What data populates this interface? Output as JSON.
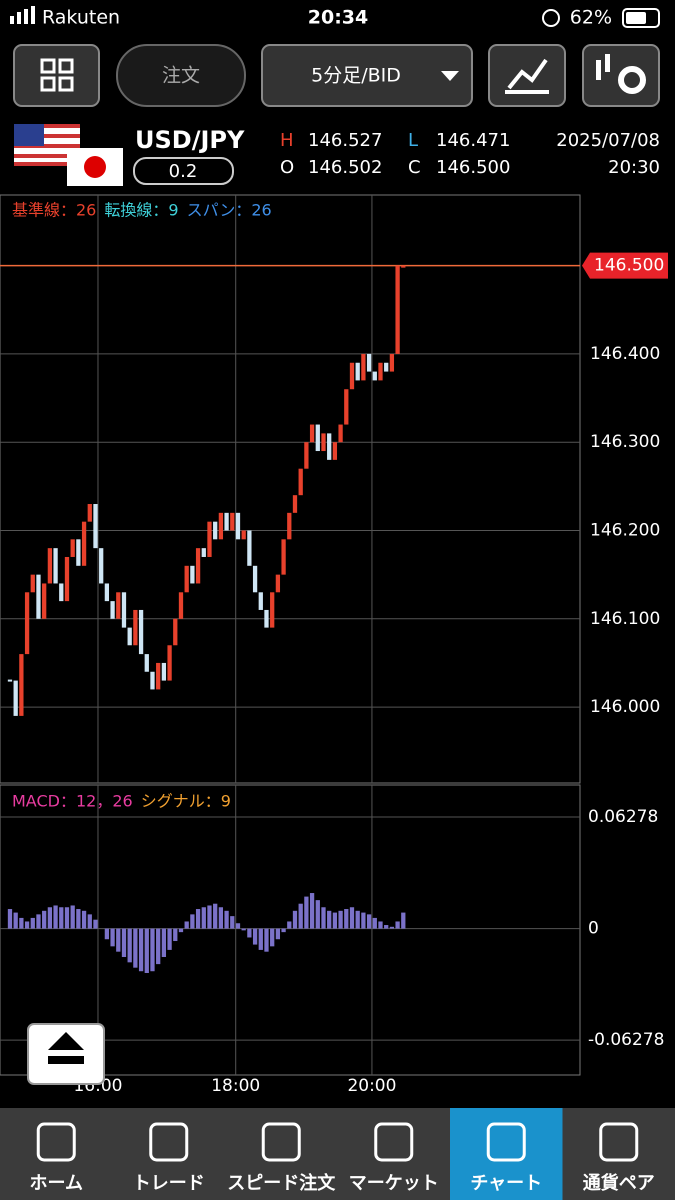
{
  "status": {
    "carrier": "Rakuten",
    "time": "20:34",
    "battery": "62%"
  },
  "toolbar": {
    "order": "注文",
    "timeframe": "5分足/BID"
  },
  "pair": {
    "name": "USD/JPY",
    "spread": "0.2",
    "date": "2025/07/08",
    "time": "20:30",
    "quotes": [
      {
        "label": "H",
        "value": "146.527"
      },
      {
        "label": "L",
        "value": "146.471"
      },
      {
        "label": "O",
        "value": "146.502"
      },
      {
        "label": "C",
        "value": "146.500"
      }
    ]
  },
  "chart_data": [
    {
      "type": "candlestick",
      "legend": [
        "基準線：26",
        "転換線：9",
        "スパン：26"
      ],
      "closes": [
        146.03,
        145.99,
        146.06,
        146.13,
        146.15,
        146.1,
        146.14,
        146.18,
        146.14,
        146.12,
        146.17,
        146.19,
        146.16,
        146.21,
        146.23,
        146.18,
        146.14,
        146.12,
        146.1,
        146.13,
        146.09,
        146.07,
        146.11,
        146.06,
        146.04,
        146.02,
        146.05,
        146.03,
        146.07,
        146.1,
        146.13,
        146.16,
        146.14,
        146.18,
        146.17,
        146.21,
        146.19,
        146.22,
        146.2,
        146.22,
        146.19,
        146.2,
        146.16,
        146.13,
        146.11,
        146.09,
        146.13,
        146.15,
        146.19,
        146.22,
        146.24,
        146.27,
        146.3,
        146.32,
        146.29,
        146.31,
        146.28,
        146.3,
        146.32,
        146.36,
        146.39,
        146.37,
        146.4,
        146.38,
        146.37,
        146.39,
        146.38,
        146.4,
        146.5,
        146.5
      ],
      "up_color": "#e8412c",
      "down_color": "#cfe6f5",
      "xlim": [
        -1.75,
        100
      ],
      "xticks": [
        {
          "value": 15.44,
          "label": "16:00"
        },
        {
          "value": 39.6,
          "label": "18:00"
        },
        {
          "value": 63.5,
          "label": "20:00"
        }
      ],
      "ylim": [
        145.914,
        146.58
      ],
      "yticks": [
        {
          "value": 146.0,
          "label": "146.000"
        },
        {
          "value": 146.1,
          "label": "146.100"
        },
        {
          "value": 146.2,
          "label": "146.200"
        },
        {
          "value": 146.3,
          "label": "146.300"
        },
        {
          "value": 146.4,
          "label": "146.400"
        }
      ],
      "current": {
        "value": 146.5,
        "label": "146.500"
      },
      "grid": true
    },
    {
      "type": "bar",
      "legend": [
        "MACD：12，26",
        "シグナル：9"
      ],
      "color": "#7b72c9",
      "values": [
        0.011,
        0.009,
        0.006,
        0.004,
        0.006,
        0.008,
        0.01,
        0.012,
        0.013,
        0.012,
        0.012,
        0.013,
        0.011,
        0.01,
        0.008,
        0.005,
        0.0,
        -0.006,
        -0.01,
        -0.013,
        -0.016,
        -0.019,
        -0.022,
        -0.024,
        -0.025,
        -0.024,
        -0.02,
        -0.016,
        -0.012,
        -0.007,
        -0.002,
        0.004,
        0.008,
        0.011,
        0.012,
        0.013,
        0.014,
        0.012,
        0.01,
        0.007,
        0.003,
        -0.001,
        -0.005,
        -0.009,
        -0.012,
        -0.013,
        -0.01,
        -0.006,
        -0.002,
        0.004,
        0.01,
        0.014,
        0.018,
        0.02,
        0.016,
        0.012,
        0.01,
        0.009,
        0.01,
        0.011,
        0.012,
        0.01,
        0.009,
        0.008,
        0.006,
        0.004,
        0.002,
        0.001,
        0.004,
        0.009
      ],
      "ylim": [
        -0.0824,
        0.0808
      ],
      "yticks": [
        0.06278,
        0,
        -0.06278
      ]
    }
  ],
  "tabs": [
    "ホーム",
    "トレード",
    "スピード注文",
    "マーケット",
    "チャート",
    "通貨ペア"
  ],
  "active_tab": 4
}
